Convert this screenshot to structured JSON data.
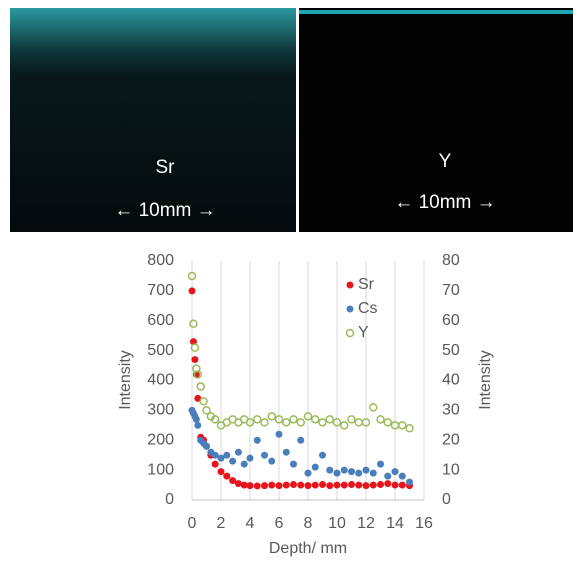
{
  "panels": [
    {
      "label": "Sr",
      "scale": "← 10mm →"
    },
    {
      "label": "Y",
      "scale": "← 10mm →"
    }
  ],
  "chart_data": {
    "type": "scatter",
    "x_label": "Depth/ mm",
    "y_label": "Intensity",
    "y2_label": "Intensity",
    "xlim": [
      0,
      16
    ],
    "xticks": [
      0,
      2,
      4,
      6,
      8,
      10,
      12,
      14,
      16
    ],
    "ylim": [
      0,
      800
    ],
    "yticks": [
      0,
      100,
      200,
      300,
      400,
      500,
      600,
      700,
      800
    ],
    "y2lim": [
      0,
      80
    ],
    "y2ticks": [
      0,
      10,
      20,
      30,
      40,
      50,
      60,
      70,
      80
    ],
    "grid": "x",
    "legend": "top-right",
    "x": [
      0,
      0.1,
      0.2,
      0.3,
      0.4,
      0.6,
      0.8,
      1.0,
      1.3,
      1.6,
      2.0,
      2.4,
      2.8,
      3.2,
      3.6,
      4.0,
      4.5,
      5.0,
      5.5,
      6.0,
      6.5,
      7.0,
      7.5,
      8.0,
      8.5,
      9.0,
      9.5,
      10.0,
      10.5,
      11.0,
      11.5,
      12.0,
      12.5,
      13.0,
      13.5,
      14.0,
      14.5,
      15.0
    ],
    "series": [
      {
        "name": "Sr",
        "color": "#e8141b",
        "marker": "filled",
        "values": [
          700,
          530,
          470,
          420,
          340,
          210,
          200,
          180,
          150,
          120,
          95,
          80,
          65,
          55,
          50,
          48,
          47,
          48,
          50,
          48,
          50,
          52,
          50,
          48,
          50,
          52,
          48,
          50,
          50,
          52,
          50,
          48,
          50,
          52,
          55,
          50,
          50,
          48
        ]
      },
      {
        "name": "Cs",
        "color": "#4a7ebb",
        "marker": "filled",
        "values": [
          300,
          290,
          280,
          270,
          250,
          200,
          190,
          180,
          160,
          150,
          140,
          150,
          130,
          160,
          120,
          140,
          200,
          150,
          130,
          220,
          160,
          120,
          200,
          90,
          110,
          150,
          100,
          90,
          100,
          95,
          90,
          100,
          90,
          120,
          80,
          95,
          80,
          60
        ]
      },
      {
        "name": "Y",
        "color": "#9bbb59",
        "marker": "hollow",
        "axis": "y2",
        "values": [
          75,
          59,
          51,
          44,
          42,
          38,
          33,
          30,
          28,
          27,
          25,
          26,
          27,
          26,
          27,
          26,
          27,
          26,
          28,
          27,
          26,
          27,
          26,
          28,
          27,
          26,
          27,
          26,
          25,
          27,
          26,
          26,
          31,
          27,
          26,
          25,
          25,
          24
        ]
      }
    ]
  }
}
